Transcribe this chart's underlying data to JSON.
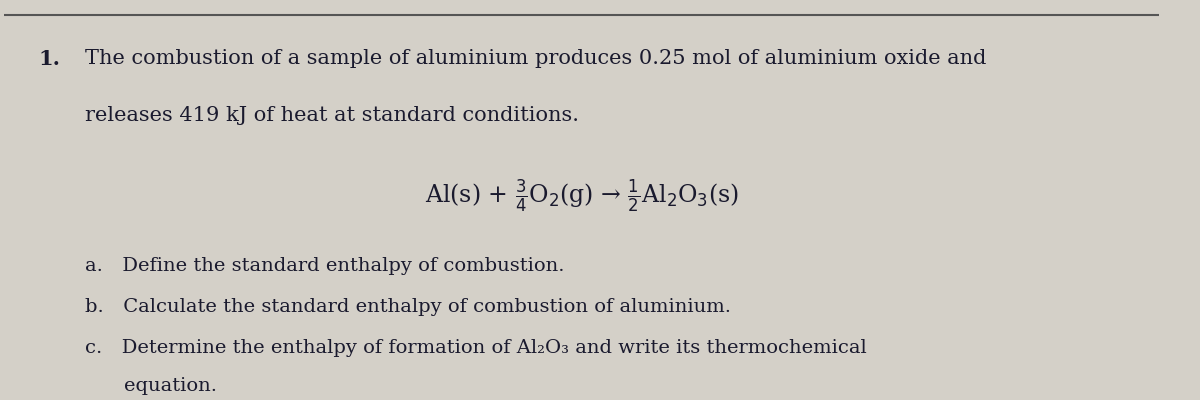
{
  "bg_color": "#d4d0c8",
  "text_color": "#1a1a2e",
  "title_number": "1.",
  "line1": "The combustion of a sample of aluminium produces 0.25 mol of aluminium oxide and",
  "line2": "releases 419 kJ of heat at standard conditions.",
  "equation_text": "Al(s) + $\\frac{3}{4}$O$_2$(g) → $\\frac{1}{2}$Al$_2$O$_3$(s)",
  "item_a": "a. Define the standard enthalpy of combustion.",
  "item_b": "b. Calculate the standard enthalpy of combustion of aluminium.",
  "item_c_line1": "c. Determine the enthalpy of formation of Al₂O₃ and write its thermochemical",
  "item_c_line2": "  equation.",
  "font_size_main": 15,
  "font_size_eq": 17,
  "font_size_items": 14,
  "border_color": "#555555",
  "border_linewidth": 1.5
}
